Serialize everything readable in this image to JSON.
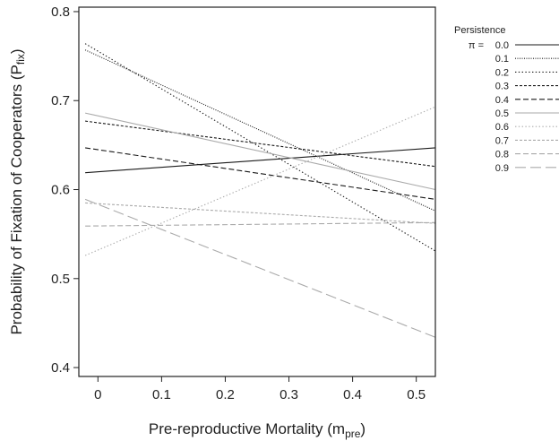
{
  "chart_data": {
    "type": "line",
    "xlabel": "Pre-reproductive Mortality (m",
    "xlabel_sub": "pre",
    "xlabel_suffix": ")",
    "ylabel": "Probability of Fixation of Cooperators  (P",
    "ylabel_sub": "fix",
    "ylabel_suffix": ")",
    "xlim": [
      -0.03,
      0.53
    ],
    "ylim": [
      0.39,
      0.805
    ],
    "xticks": [
      0,
      0.1,
      0.2,
      0.3,
      0.4,
      0.5
    ],
    "xtick_labels": [
      "0",
      "0.1",
      "0.2",
      "0.3",
      "0.4",
      "0.5"
    ],
    "yticks": [
      0.4,
      0.5,
      0.6,
      0.7,
      0.8
    ],
    "ytick_labels": [
      "0.4",
      "0.5",
      "0.6",
      "0.7",
      "0.8"
    ],
    "grid": false,
    "legend_title": "Persistence",
    "legend_prefix": "π =",
    "legend_position": "right",
    "series": [
      {
        "name": "0.0",
        "x": [
          -0.02,
          0.53
        ],
        "y": [
          0.619,
          0.647
        ],
        "color": "#1a1a1a",
        "dash": "solid"
      },
      {
        "name": "0.1",
        "x": [
          -0.02,
          0.53
        ],
        "y": [
          0.757,
          0.576
        ],
        "color": "#1a1a1a",
        "dash": "dense-dot"
      },
      {
        "name": "0.2",
        "x": [
          -0.02,
          0.53
        ],
        "y": [
          0.764,
          0.531
        ],
        "color": "#1a1a1a",
        "dash": "dot"
      },
      {
        "name": "0.3",
        "x": [
          -0.02,
          0.53
        ],
        "y": [
          0.677,
          0.626
        ],
        "color": "#1a1a1a",
        "dash": "short-dash"
      },
      {
        "name": "0.4",
        "x": [
          -0.02,
          0.53
        ],
        "y": [
          0.647,
          0.589
        ],
        "color": "#1a1a1a",
        "dash": "dash"
      },
      {
        "name": "0.5",
        "x": [
          -0.02,
          0.53
        ],
        "y": [
          0.686,
          0.6
        ],
        "color": "#aaaaaa",
        "dash": "solid"
      },
      {
        "name": "0.6",
        "x": [
          -0.02,
          0.53
        ],
        "y": [
          0.526,
          0.693
        ],
        "color": "#aaaaaa",
        "dash": "dot"
      },
      {
        "name": "0.7",
        "x": [
          -0.02,
          0.53
        ],
        "y": [
          0.585,
          0.562
        ],
        "color": "#aaaaaa",
        "dash": "short-dash"
      },
      {
        "name": "0.8",
        "x": [
          -0.02,
          0.53
        ],
        "y": [
          0.559,
          0.563
        ],
        "color": "#aaaaaa",
        "dash": "dash"
      },
      {
        "name": "0.9",
        "x": [
          -0.02,
          0.53
        ],
        "y": [
          0.589,
          0.434
        ],
        "color": "#aaaaaa",
        "dash": "long-dash"
      }
    ]
  }
}
